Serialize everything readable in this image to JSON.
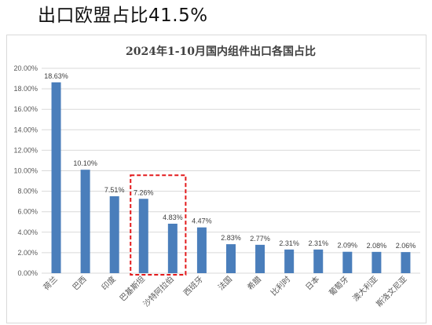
{
  "headline": "出口欧盟占比41.5%",
  "colors": {
    "bar": "#4a7ebb",
    "grid": "#d9d9d9",
    "highlight": "#e31a1c"
  },
  "chart_data": {
    "type": "bar",
    "title": "2024年1-10月国内组件出口各国占比",
    "xlabel": "",
    "ylabel": "",
    "ylim": [
      0,
      20
    ],
    "y_ticks": [
      "0.00%",
      "2.00%",
      "4.00%",
      "6.00%",
      "8.00%",
      "10.00%",
      "12.00%",
      "14.00%",
      "16.00%",
      "18.00%",
      "20.00%"
    ],
    "grid": true,
    "legend": "none",
    "categories": [
      "荷兰",
      "巴西",
      "印度",
      "巴基斯坦",
      "沙特阿拉伯",
      "西班牙",
      "法国",
      "希腊",
      "比利时",
      "日本",
      "葡萄牙",
      "澳大利亚",
      "斯洛文尼亚"
    ],
    "values": [
      18.63,
      10.1,
      7.51,
      7.26,
      4.83,
      4.47,
      2.83,
      2.77,
      2.31,
      2.31,
      2.09,
      2.08,
      2.06
    ],
    "data_labels": [
      "18.63%",
      "10.10%",
      "7.51%",
      "7.26%",
      "4.83%",
      "4.47%",
      "2.83%",
      "2.77%",
      "2.31%",
      "2.31%",
      "2.09%",
      "2.08%",
      "2.06%"
    ],
    "highlighted_categories": [
      "巴基斯坦",
      "沙特阿拉伯"
    ]
  }
}
